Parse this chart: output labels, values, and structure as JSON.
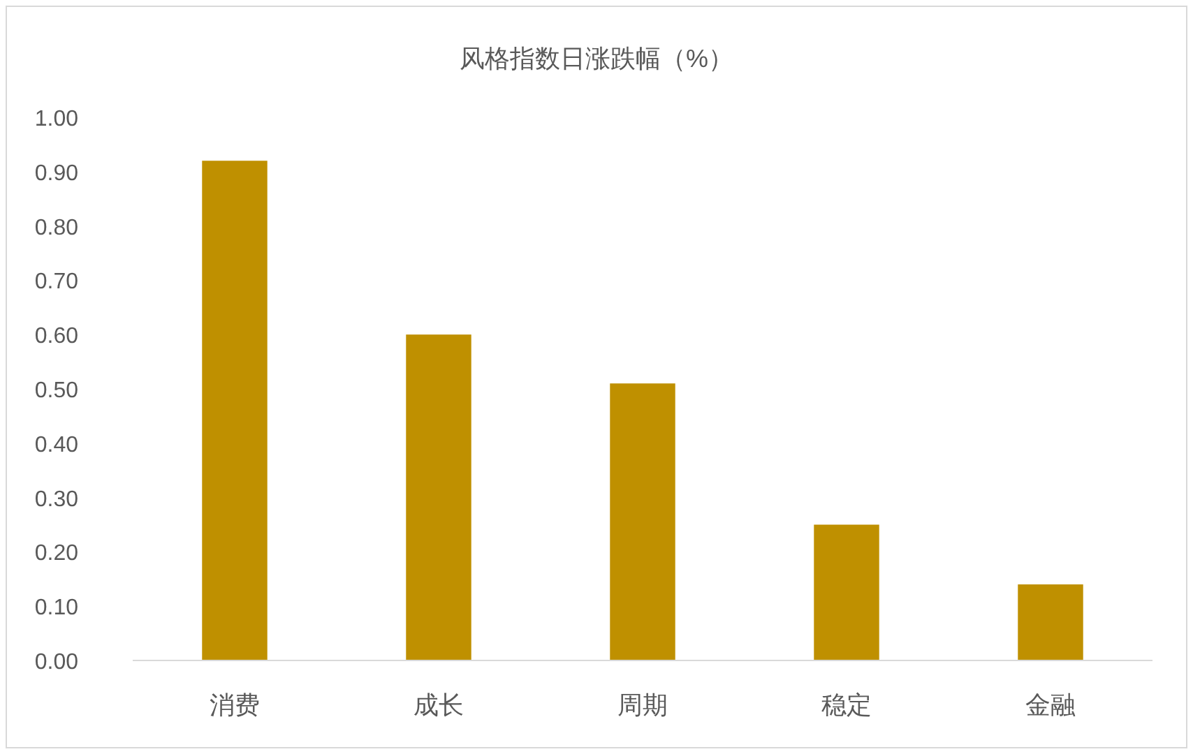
{
  "chart_data": {
    "type": "bar",
    "title": "风格指数日涨跌幅（%）",
    "categories": [
      "消费",
      "成长",
      "周期",
      "稳定",
      "金融"
    ],
    "values": [
      0.92,
      0.6,
      0.51,
      0.25,
      0.14
    ],
    "color": "#bf9000",
    "ylim": [
      0,
      1
    ],
    "yticks": [
      {
        "value": 0,
        "label": "0.00"
      },
      {
        "value": 0.1,
        "label": "0.10"
      },
      {
        "value": 0.2,
        "label": "0.20"
      },
      {
        "value": 0.3,
        "label": "0.30"
      },
      {
        "value": 0.4,
        "label": "0.40"
      },
      {
        "value": 0.5,
        "label": "0.50"
      },
      {
        "value": 0.6,
        "label": "0.60"
      },
      {
        "value": 0.7,
        "label": "0.70"
      },
      {
        "value": 0.8,
        "label": "0.80"
      },
      {
        "value": 0.9,
        "label": "0.90"
      },
      {
        "value": 1,
        "label": "1.00"
      }
    ],
    "grid": false
  }
}
